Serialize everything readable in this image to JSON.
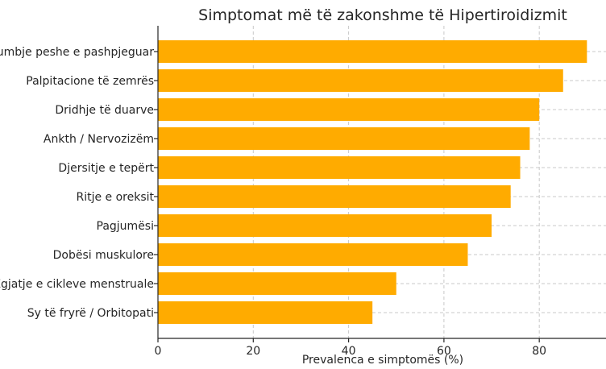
{
  "chart_data": {
    "type": "bar",
    "orientation": "horizontal",
    "title": "Simptomat më të zakonshme të Hipertiroidizmit",
    "xlabel": "Prevalenca e simptomës (%)",
    "ylabel": "",
    "categories": [
      "Humbje peshe e pashpjeguar",
      "Palpitacione të zemrës",
      "Dridhje të duarve",
      "Ankth / Nervozizëm",
      "Djersitje e tepërt",
      "Ritje e oreksit",
      "Pagjumësi",
      "Dobësi muskulore",
      "Zgjatje e cikleve menstruale",
      "Sy të fryrë / Orbitopati"
    ],
    "values": [
      90,
      85,
      80,
      78,
      76,
      74,
      70,
      65,
      50,
      45
    ],
    "xlim": [
      0,
      94
    ],
    "xticks": [
      "0",
      "20",
      "40",
      "60",
      "80"
    ],
    "grid": true,
    "bar_color": "#ffab00"
  }
}
